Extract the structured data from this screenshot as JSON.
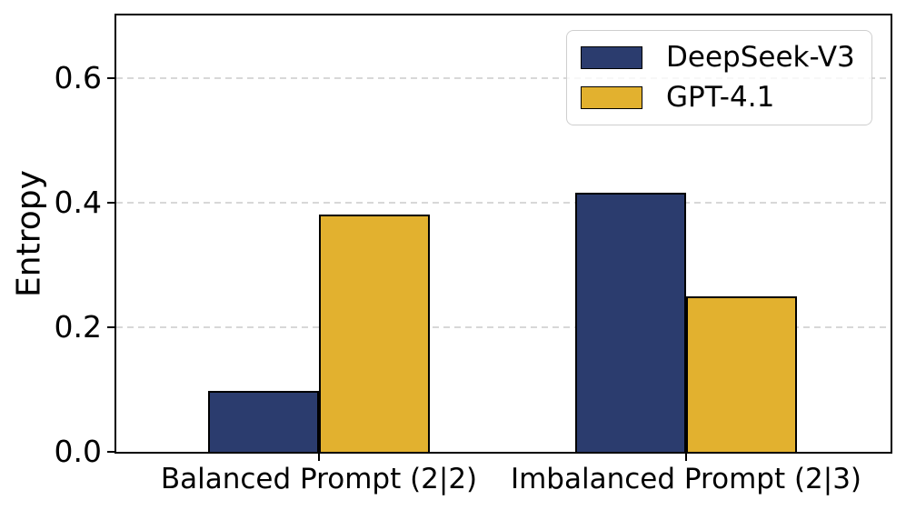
{
  "figure": {
    "background": "#ffffff"
  },
  "chart_data": {
    "type": "bar",
    "categories": [
      "Balanced Prompt (2|2)",
      "Imbalanced Prompt (2|3)"
    ],
    "series": [
      {
        "name": "DeepSeek-V3",
        "color": "#2B3C6E",
        "values": [
          0.098,
          0.415
        ]
      },
      {
        "name": "GPT-4.1",
        "color": "#E2B12F",
        "values": [
          0.38,
          0.25
        ]
      }
    ],
    "title": "",
    "xlabel": "",
    "ylabel": "Entropy",
    "yticks": [
      0.0,
      0.2,
      0.4,
      0.6
    ],
    "ytick_labels": [
      "0.0",
      "0.2",
      "0.4",
      "0.6"
    ],
    "ylim": [
      0,
      0.7
    ],
    "grid": "horizontal-dashed",
    "grid_color": "#d8d8d8",
    "bar_edge_color": "#000000",
    "axis_color": "#000000",
    "legend_position": "upper-right"
  }
}
